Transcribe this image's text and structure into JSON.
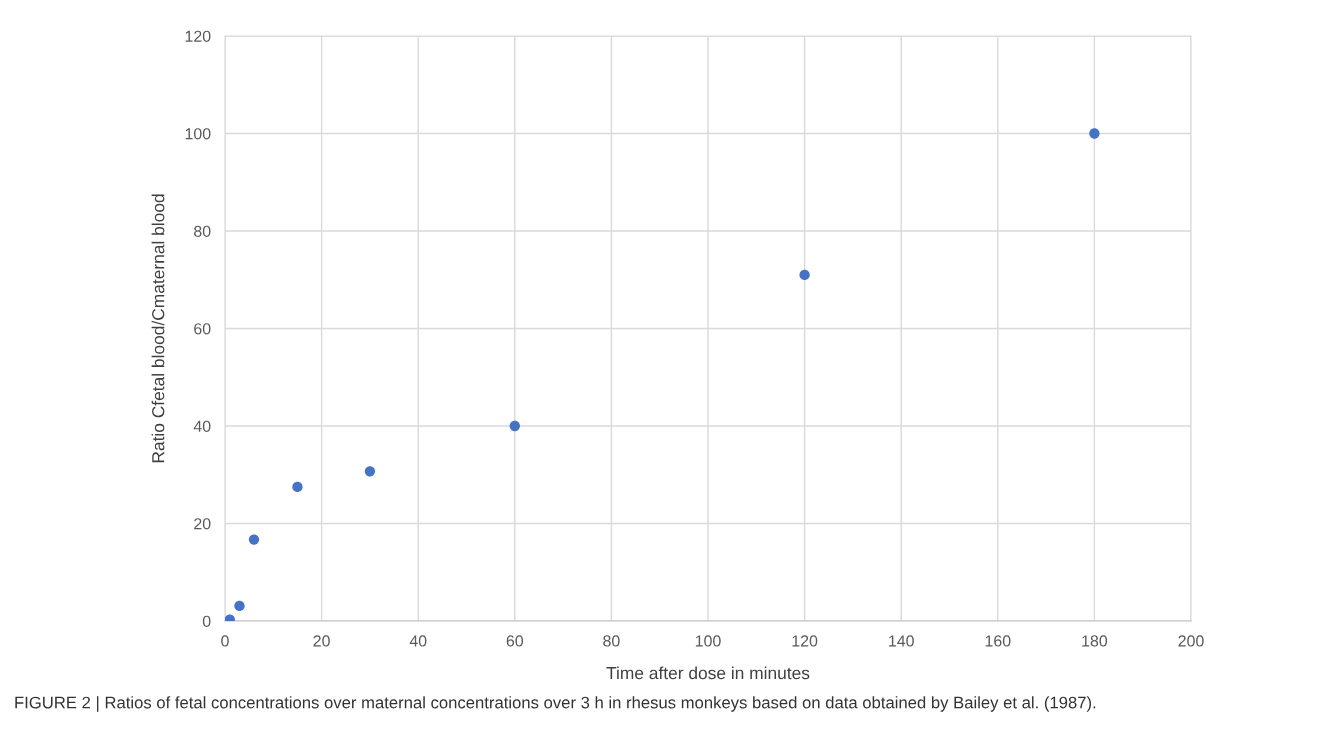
{
  "chart_data": {
    "type": "scatter",
    "xlabel": "Time after dose in minutes",
    "ylabel": "Ratio Cfetal blood/Cmaternal blood",
    "x": [
      1,
      3,
      6,
      15,
      30,
      60,
      120,
      180
    ],
    "series": [
      {
        "color": "#4472c4",
        "values": [
          0.3,
          3.1,
          16.7,
          27.5,
          30.7,
          40,
          71,
          100
        ]
      }
    ],
    "xlim": [
      0,
      200
    ],
    "xticks": [
      0,
      20,
      40,
      60,
      80,
      100,
      120,
      140,
      160,
      180,
      200
    ],
    "ylim": [
      0,
      120
    ],
    "yticks": [
      0,
      20,
      40,
      60,
      80,
      100,
      120
    ],
    "grid": true,
    "marker": "circle",
    "annotations": [
      "FIGURE 2 | Ratios of fetal concentrations over maternal concentrations over 3 h in rhesus monkeys based on data obtained by Bailey et al. (1987)."
    ]
  }
}
